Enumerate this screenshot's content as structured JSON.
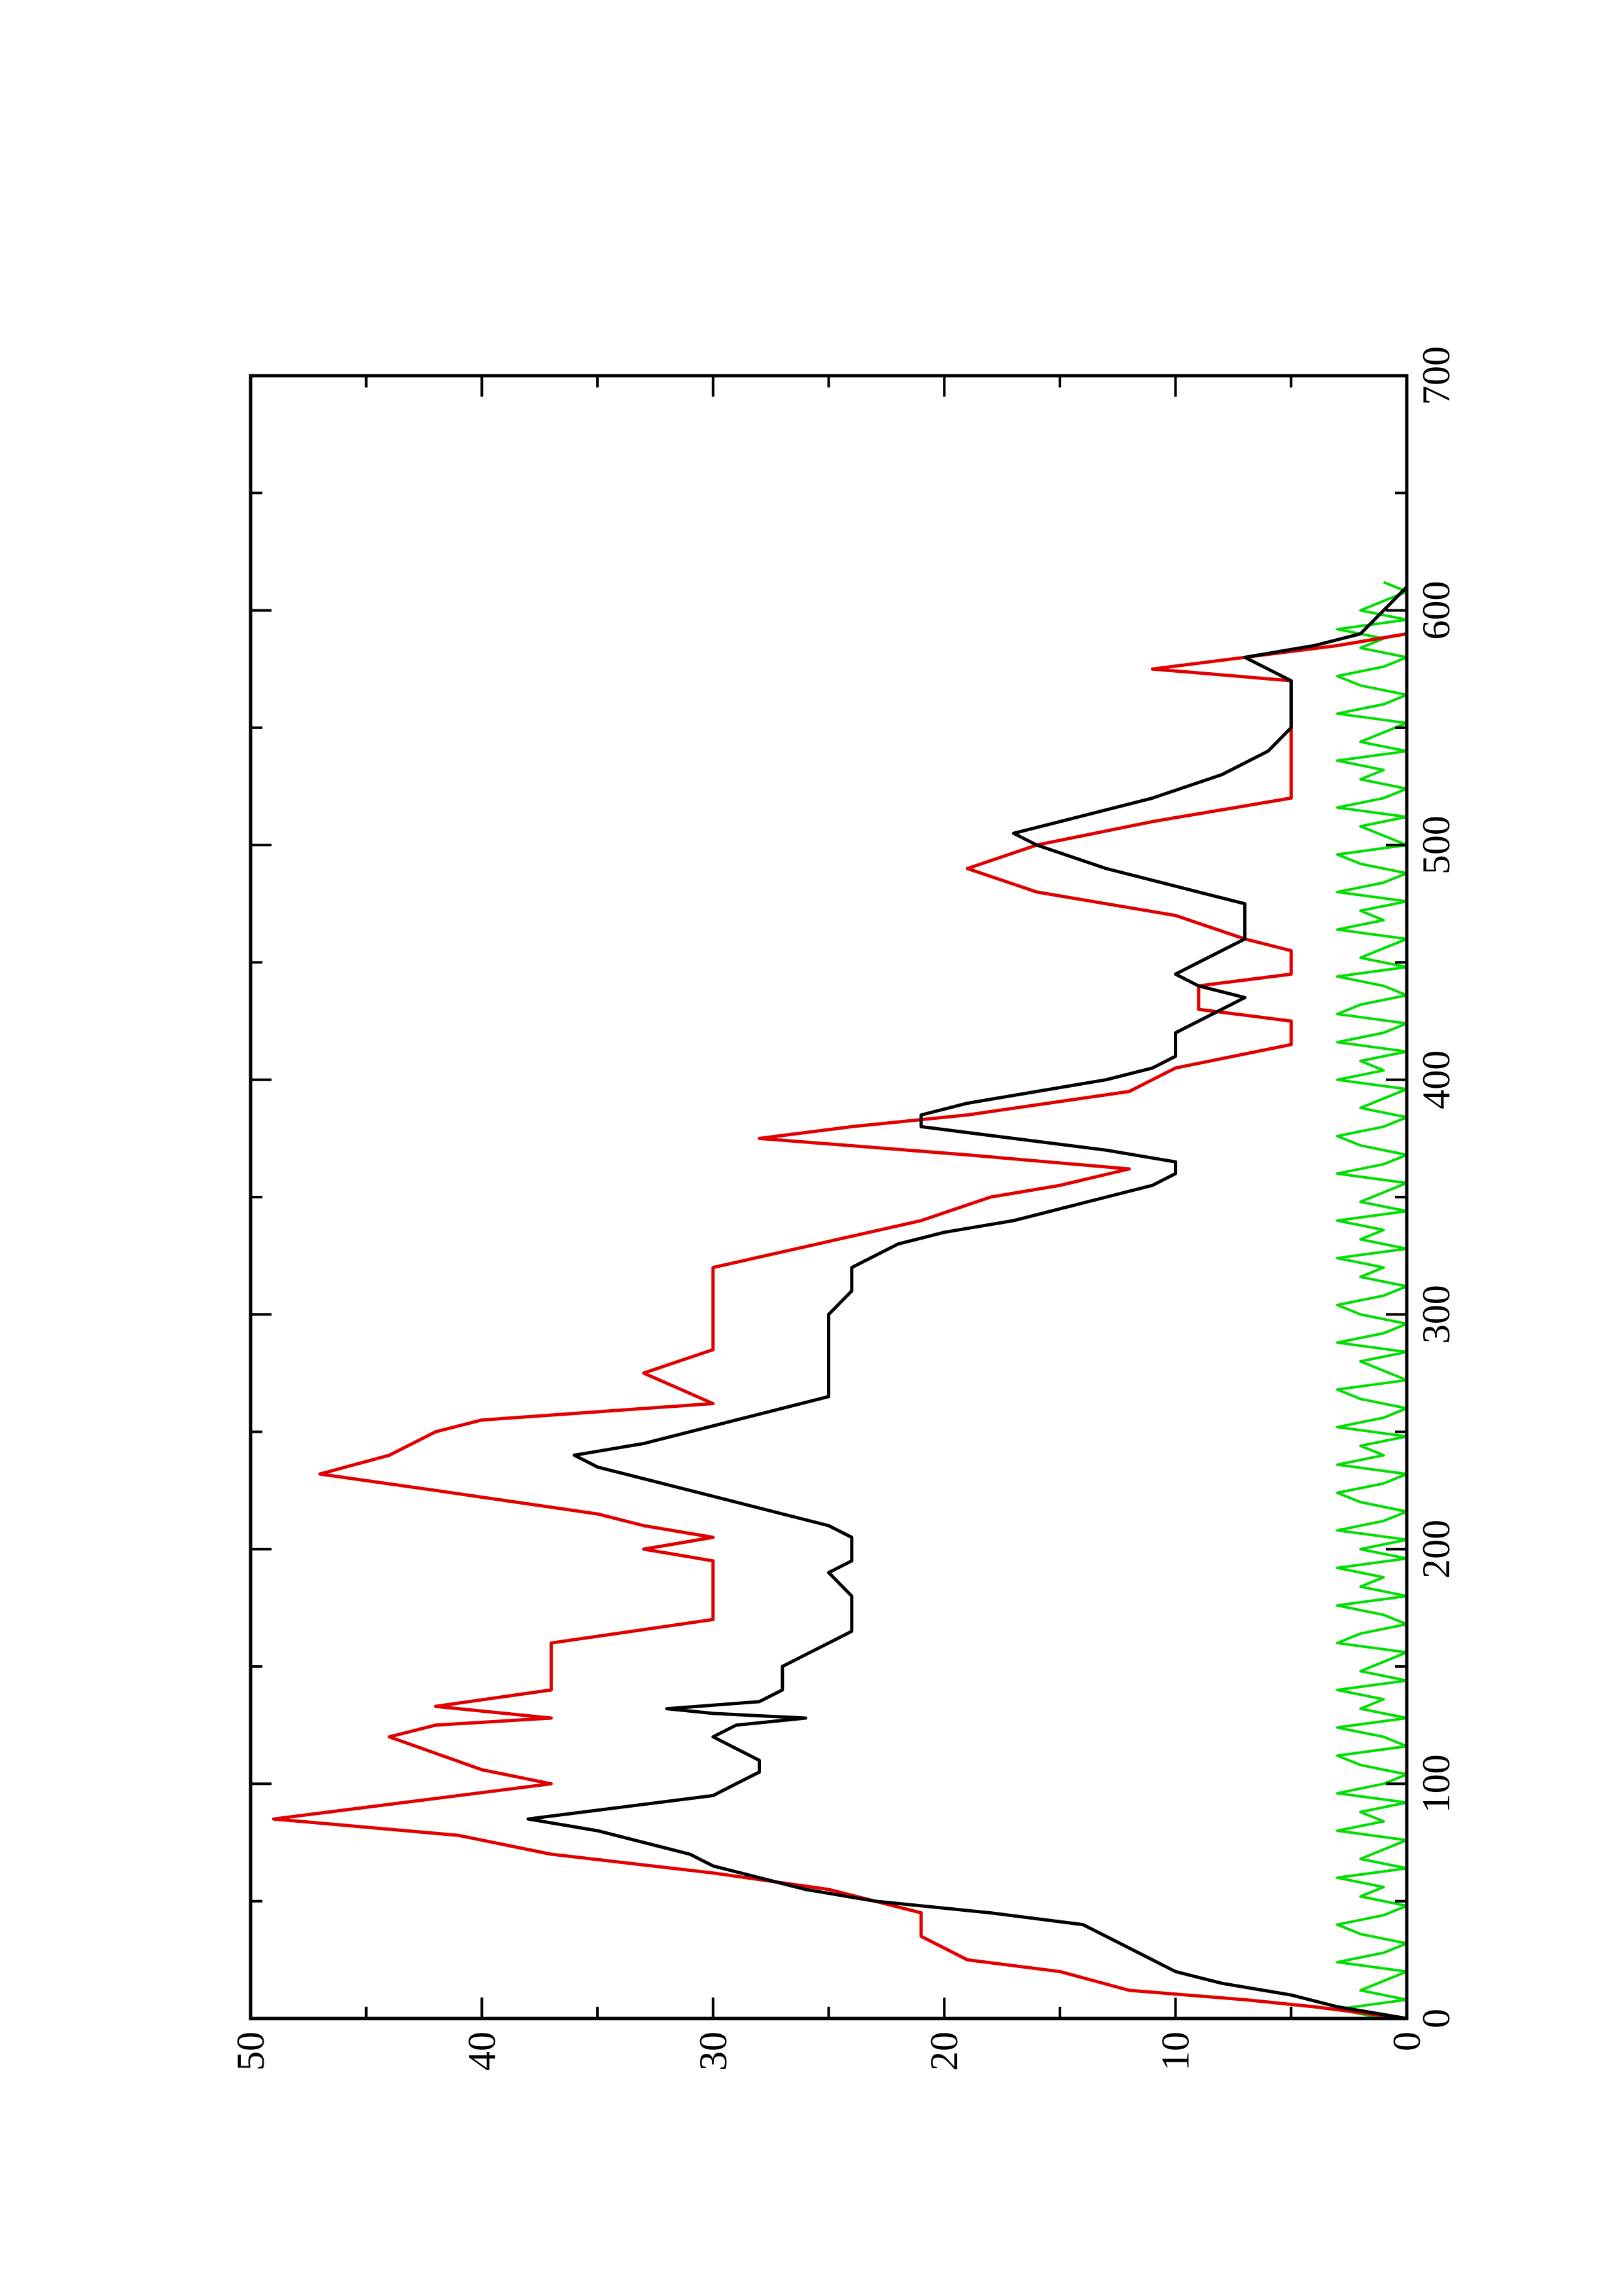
{
  "chart_data": {
    "type": "line",
    "orientation": "rotated-90-ccw",
    "title": "",
    "xlabel": "",
    "ylabel": "",
    "xlim": [
      0,
      700
    ],
    "ylim": [
      0,
      50
    ],
    "x_ticks": [
      0,
      100,
      200,
      300,
      400,
      500,
      600,
      700
    ],
    "x_tick_labels": [
      "0",
      "100",
      "200",
      "300",
      "400",
      "500",
      "600",
      "700"
    ],
    "x_minor_ticks": [
      50,
      150,
      250,
      350,
      450,
      550,
      650
    ],
    "y_ticks": [
      0,
      10,
      20,
      30,
      40,
      50
    ],
    "y_tick_labels": [
      "0",
      "10",
      "20",
      "30",
      "40",
      "50"
    ],
    "y_minor_ticks": [
      5,
      15,
      25,
      35,
      45
    ],
    "grid": false,
    "legend": "none",
    "series": [
      {
        "color": "#e00000",
        "style": "step",
        "x": [
          0,
          5,
          8,
          12,
          20,
          25,
          35,
          45,
          55,
          62,
          70,
          78,
          85,
          100,
          106,
          113,
          120,
          125,
          128,
          133,
          140,
          160,
          170,
          195,
          200,
          205,
          210,
          215,
          225,
          232,
          240,
          250,
          255,
          262,
          275,
          285,
          320,
          340,
          350,
          355,
          362,
          368,
          375,
          380,
          385,
          395,
          400,
          405,
          415,
          425,
          430,
          440,
          445,
          455,
          460,
          470,
          480,
          490,
          500,
          510,
          520,
          570,
          575,
          580,
          585,
          590
        ],
        "y": [
          0,
          4,
          7,
          12,
          15,
          19,
          21,
          21,
          25,
          30,
          37,
          41,
          49,
          37,
          40,
          42,
          44,
          42,
          37,
          42,
          37,
          37,
          30,
          30,
          33,
          30,
          33,
          35,
          42,
          47,
          44,
          42,
          40,
          30,
          33,
          30,
          30,
          21,
          18,
          15,
          12,
          19,
          28,
          24,
          19,
          12,
          11,
          10,
          5,
          5,
          9,
          9,
          5,
          5,
          7,
          10,
          16,
          19,
          16,
          11,
          5,
          5,
          11,
          7,
          3,
          0
        ]
      },
      {
        "color": "#000000",
        "style": "line",
        "x": [
          0,
          5,
          10,
          15,
          20,
          25,
          30,
          35,
          40,
          45,
          50,
          55,
          60,
          65,
          70,
          75,
          80,
          85,
          90,
          95,
          100,
          105,
          110,
          115,
          120,
          125,
          128,
          130,
          132,
          135,
          140,
          150,
          160,
          165,
          170,
          175,
          180,
          190,
          195,
          200,
          205,
          210,
          220,
          230,
          235,
          240,
          245,
          250,
          255,
          260,
          265,
          270,
          280,
          290,
          300,
          310,
          320,
          330,
          335,
          340,
          345,
          350,
          355,
          360,
          365,
          370,
          375,
          380,
          385,
          390,
          395,
          400,
          405,
          410,
          420,
          425,
          430,
          435,
          440,
          445,
          450,
          460,
          470,
          475,
          480,
          490,
          500,
          505,
          510,
          520,
          530,
          540,
          550,
          560,
          570,
          575,
          580,
          585,
          590,
          600,
          610
        ],
        "y": [
          0,
          3,
          5,
          8,
          10,
          11,
          12,
          13,
          14,
          18,
          23,
          26,
          28,
          30,
          31,
          33,
          35,
          38,
          34,
          30,
          29,
          28,
          28,
          29,
          30,
          29,
          26,
          30,
          32,
          28,
          27,
          27,
          25,
          24,
          24,
          24,
          24,
          25,
          24,
          24,
          24,
          25,
          29,
          33,
          35,
          36,
          33,
          31,
          29,
          27,
          25,
          25,
          25,
          25,
          25,
          24,
          24,
          22,
          20,
          17,
          15,
          13,
          11,
          10,
          10,
          13,
          17,
          21,
          21,
          19,
          16,
          13,
          11,
          10,
          10,
          9,
          8,
          7,
          9,
          10,
          9,
          7,
          7,
          7,
          9,
          13,
          16,
          17,
          15,
          11,
          8,
          6,
          5,
          5,
          5,
          6,
          7,
          4,
          2,
          1,
          0
        ]
      },
      {
        "color": "#00dd00",
        "style": "noise",
        "x": [
          0,
          4,
          8,
          12,
          16,
          20,
          24,
          28,
          32,
          36,
          40,
          44,
          48,
          52,
          56,
          60,
          64,
          68,
          72,
          76,
          80,
          84,
          88,
          92,
          96,
          100,
          104,
          108,
          112,
          116,
          120,
          124,
          128,
          132,
          136,
          140,
          144,
          148,
          152,
          156,
          160,
          164,
          168,
          172,
          176,
          180,
          184,
          188,
          192,
          196,
          200,
          204,
          208,
          212,
          216,
          220,
          224,
          228,
          232,
          236,
          240,
          244,
          248,
          252,
          256,
          260,
          264,
          268,
          272,
          276,
          280,
          284,
          288,
          292,
          296,
          300,
          304,
          308,
          312,
          316,
          320,
          324,
          328,
          332,
          336,
          340,
          344,
          348,
          352,
          356,
          360,
          364,
          368,
          372,
          376,
          380,
          384,
          388,
          392,
          396,
          400,
          404,
          408,
          412,
          416,
          420,
          424,
          428,
          432,
          436,
          440,
          444,
          448,
          452,
          456,
          460,
          464,
          468,
          472,
          476,
          480,
          484,
          488,
          492,
          496,
          500,
          504,
          508,
          512,
          516,
          520,
          524,
          528,
          532,
          536,
          540,
          544,
          548,
          552,
          556,
          560,
          564,
          568,
          572,
          576,
          580,
          584,
          588,
          592,
          596,
          600,
          604,
          608,
          612
        ],
        "y": [
          1,
          3,
          0,
          2,
          1,
          0,
          3,
          1,
          0,
          2,
          3,
          1,
          0,
          2,
          1,
          3,
          0,
          2,
          1,
          0,
          3,
          1,
          2,
          0,
          3,
          1,
          0,
          2,
          3,
          0,
          1,
          3,
          0,
          2,
          1,
          3,
          0,
          2,
          1,
          0,
          3,
          2,
          0,
          1,
          3,
          0,
          2,
          1,
          3,
          0,
          2,
          0,
          3,
          1,
          0,
          2,
          3,
          1,
          0,
          3,
          1,
          2,
          0,
          3,
          1,
          0,
          2,
          3,
          0,
          1,
          2,
          0,
          3,
          1,
          0,
          2,
          3,
          1,
          0,
          2,
          1,
          3,
          0,
          2,
          1,
          3,
          0,
          2,
          1,
          0,
          3,
          1,
          0,
          2,
          3,
          1,
          0,
          2,
          1,
          0,
          3,
          1,
          2,
          0,
          3,
          1,
          0,
          3,
          2,
          0,
          1,
          3,
          0,
          2,
          1,
          0,
          3,
          1,
          2,
          0,
          3,
          1,
          0,
          2,
          3,
          0,
          1,
          2,
          0,
          3,
          1,
          0,
          2,
          1,
          3,
          0,
          2,
          1,
          0,
          3,
          1,
          0,
          2,
          3,
          1,
          0,
          2,
          1,
          3,
          0,
          2,
          1,
          0,
          1
        ]
      }
    ]
  }
}
